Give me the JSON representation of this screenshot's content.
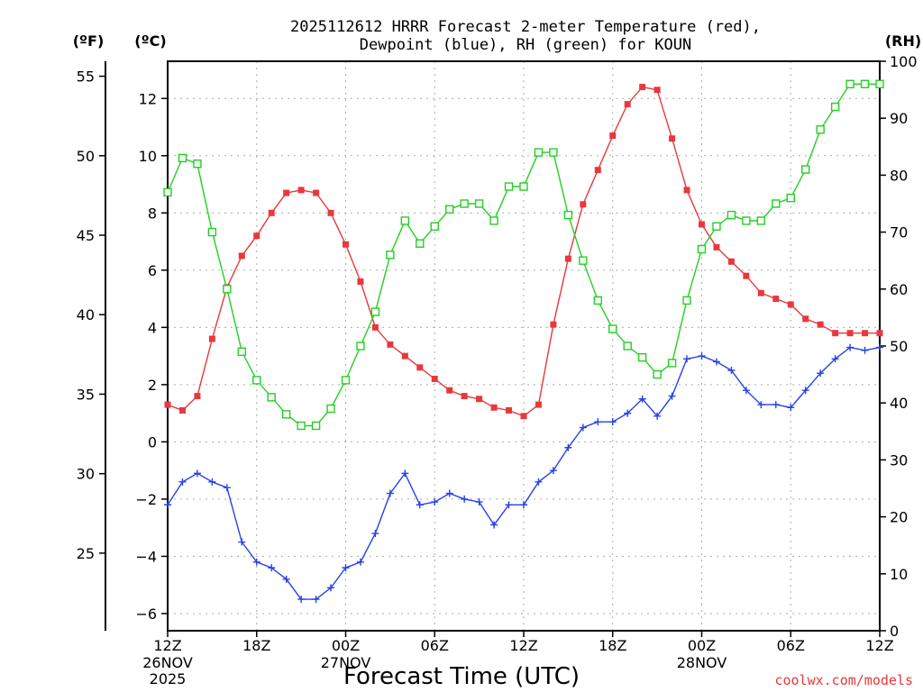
{
  "chart_data": {
    "type": "line",
    "title": [
      "2025112612 HRRR Forecast 2-meter Temperature (red),",
      "Dewpoint (blue), RH (green) for KOUN"
    ],
    "xlabel": "Forecast Time (UTC)",
    "units": {
      "fahrenheit": "(ºF)",
      "celsius": "(ºC)",
      "rh": "(RH)"
    },
    "credit": "coolwx.com/models",
    "x_hours": [
      0,
      1,
      2,
      3,
      4,
      5,
      6,
      7,
      8,
      9,
      10,
      11,
      12,
      13,
      14,
      15,
      16,
      17,
      18,
      19,
      20,
      21,
      22,
      23,
      24,
      25,
      26,
      27,
      28,
      29,
      30,
      31,
      32,
      33,
      34,
      35,
      36,
      37,
      38,
      39,
      40,
      41,
      42,
      43,
      44,
      45,
      46,
      47,
      48
    ],
    "xlim": [
      0,
      48
    ],
    "x_ticks": [
      {
        "hour": 0,
        "label": "12Z",
        "date": "26NOV",
        "year": "2025"
      },
      {
        "hour": 6,
        "label": "18Z"
      },
      {
        "hour": 12,
        "label": "00Z",
        "date": "27NOV"
      },
      {
        "hour": 18,
        "label": "06Z"
      },
      {
        "hour": 24,
        "label": "12Z"
      },
      {
        "hour": 30,
        "label": "18Z"
      },
      {
        "hour": 36,
        "label": "00Z",
        "date": "28NOV"
      },
      {
        "hour": 42,
        "label": "06Z"
      },
      {
        "hour": 48,
        "label": "12Z"
      }
    ],
    "celsius_axis": {
      "ylim": [
        -6.6,
        13.3
      ],
      "ticks": [
        -6,
        -4,
        -2,
        0,
        2,
        4,
        6,
        8,
        10,
        12
      ]
    },
    "fahrenheit_axis": {
      "ticks": [
        25,
        30,
        35,
        40,
        45,
        50,
        55
      ]
    },
    "rh_axis": {
      "ylim": [
        0,
        100
      ],
      "ticks": [
        0,
        10,
        20,
        30,
        40,
        50,
        60,
        70,
        80,
        90,
        100
      ]
    },
    "series": [
      {
        "name": "2-meter Temperature",
        "color": "#e8383c",
        "axis": "celsius",
        "marker": "filled-square",
        "values": [
          1.3,
          1.1,
          1.6,
          3.6,
          5.4,
          6.5,
          7.2,
          8.0,
          8.7,
          8.8,
          8.7,
          8.0,
          6.9,
          5.6,
          4.0,
          3.4,
          3.0,
          2.6,
          2.2,
          1.8,
          1.6,
          1.5,
          1.2,
          1.1,
          0.9,
          1.3,
          4.1,
          6.4,
          8.3,
          9.5,
          10.7,
          11.8,
          12.4,
          12.3,
          10.6,
          8.8,
          7.6,
          6.8,
          6.3,
          5.8,
          5.2,
          5.0,
          4.8,
          4.3,
          4.1,
          3.8,
          3.8,
          3.8,
          3.8
        ]
      },
      {
        "name": "Dewpoint",
        "color": "#2740e8",
        "axis": "celsius",
        "marker": "plus",
        "values": [
          -2.2,
          -1.4,
          -1.1,
          -1.4,
          -1.6,
          -3.5,
          -4.2,
          -4.4,
          -4.8,
          -5.5,
          -5.5,
          -5.1,
          -4.4,
          -4.2,
          -3.2,
          -1.8,
          -1.1,
          -2.2,
          -2.1,
          -1.8,
          -2.0,
          -2.1,
          -2.9,
          -2.2,
          -2.2,
          -1.4,
          -1.0,
          -0.2,
          0.5,
          0.7,
          0.7,
          1.0,
          1.5,
          0.9,
          1.6,
          2.9,
          3.0,
          2.8,
          2.5,
          1.8,
          1.3,
          1.3,
          1.2,
          1.8,
          2.4,
          2.9,
          3.3,
          3.2,
          3.3
        ]
      },
      {
        "name": "RH",
        "color": "#22d022",
        "axis": "rh",
        "marker": "open-square",
        "values": [
          77,
          83,
          82,
          70,
          60,
          49,
          44,
          41,
          38,
          36,
          36,
          39,
          44,
          50,
          56,
          66,
          72,
          68,
          71,
          74,
          75,
          75,
          72,
          78,
          78,
          84,
          84,
          73,
          65,
          58,
          53,
          50,
          48,
          45,
          47,
          58,
          67,
          71,
          73,
          72,
          72,
          75,
          76,
          81,
          88,
          92,
          96,
          96,
          96
        ]
      }
    ]
  }
}
